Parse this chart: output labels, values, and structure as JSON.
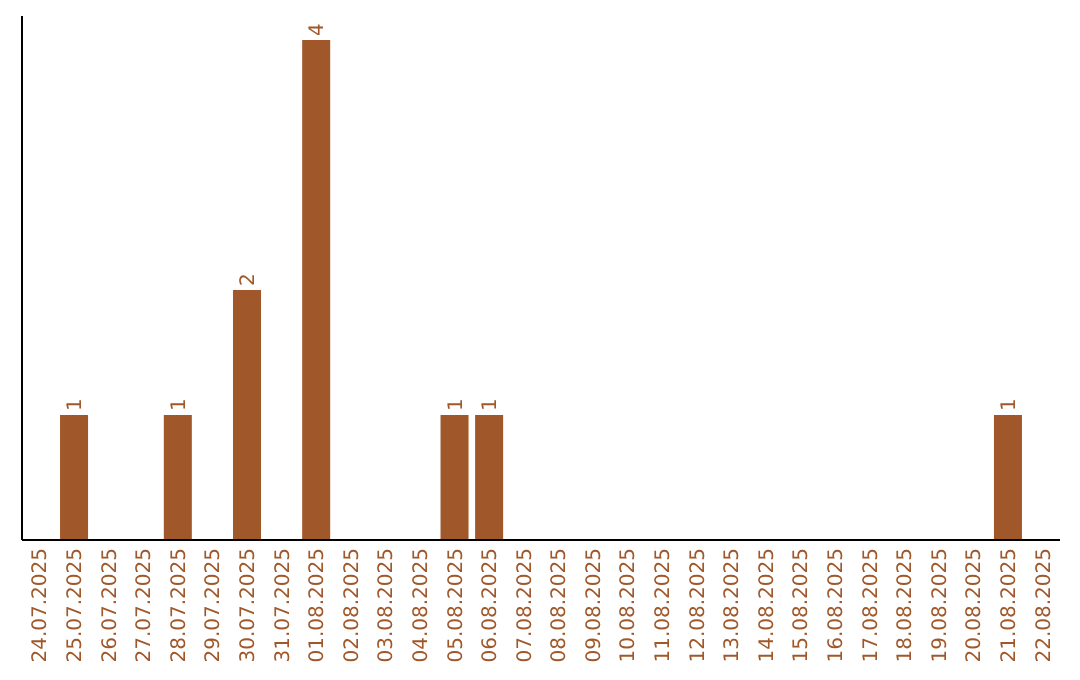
{
  "chart_data": {
    "type": "bar",
    "categories": [
      "24.07.2025",
      "25.07.2025",
      "26.07.2025",
      "27.07.2025",
      "28.07.2025",
      "29.07.2025",
      "30.07.2025",
      "31.07.2025",
      "01.08.2025",
      "02.08.2025",
      "03.08.2025",
      "04.08.2025",
      "05.08.2025",
      "06.08.2025",
      "07.08.2025",
      "08.08.2025",
      "09.08.2025",
      "10.08.2025",
      "11.08.2025",
      "12.08.2025",
      "13.08.2025",
      "14.08.2025",
      "15.08.2025",
      "16.08.2025",
      "17.08.2025",
      "18.08.2025",
      "19.08.2025",
      "20.08.2025",
      "21.08.2025",
      "22.08.2025"
    ],
    "values": [
      0,
      1,
      0,
      0,
      1,
      0,
      2,
      0,
      4,
      0,
      0,
      0,
      1,
      1,
      0,
      0,
      0,
      0,
      0,
      0,
      0,
      0,
      0,
      0,
      0,
      0,
      0,
      0,
      1,
      0
    ],
    "value_labels": [
      null,
      "1",
      null,
      null,
      "1",
      null,
      "2",
      null,
      "4",
      null,
      null,
      null,
      "1",
      "1",
      null,
      null,
      null,
      null,
      null,
      null,
      null,
      null,
      null,
      null,
      null,
      null,
      null,
      null,
      "1",
      null
    ],
    "color": "#a0582a",
    "tick_labels": "x"
  }
}
